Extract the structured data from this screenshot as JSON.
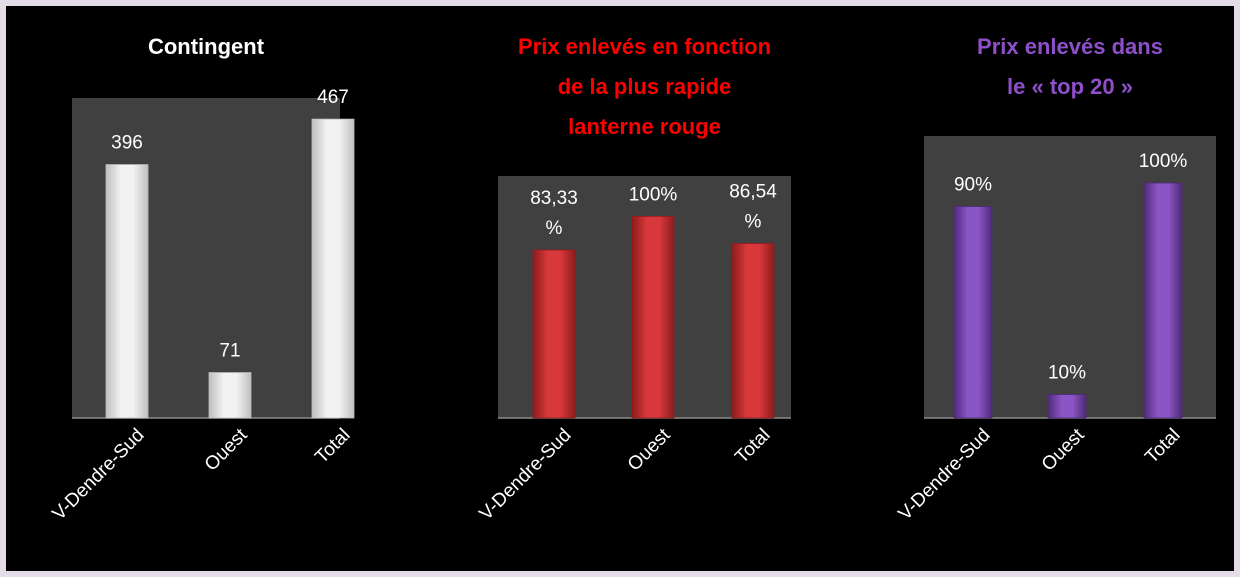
{
  "chart_data": [
    {
      "type": "bar",
      "title": [
        "Contingent"
      ],
      "title_color": "#ffffff",
      "bar_color": "#f2f2f2",
      "bar_edge": "#bfbfbf",
      "categories": [
        "V-Dendre-Sud",
        "Ouest",
        "Total"
      ],
      "values": [
        396,
        71,
        467
      ],
      "value_labels": [
        [
          "396"
        ],
        [
          "71"
        ],
        [
          "467"
        ]
      ],
      "ylim": [
        0,
        500
      ],
      "grid": false
    },
    {
      "type": "bar",
      "title": [
        "Prix enlevés en fonction",
        "de la plus rapide",
        "lanterne rouge"
      ],
      "title_color": "#ff0000",
      "bar_color": "#d9383a",
      "bar_edge": "#8c1c1e",
      "categories": [
        "V-Dendre-Sud",
        "Ouest",
        "Total"
      ],
      "values": [
        83.33,
        100,
        86.54
      ],
      "value_labels": [
        [
          "83,33",
          "%"
        ],
        [
          "100%"
        ],
        [
          "86,54",
          "%"
        ]
      ],
      "ylim": [
        0,
        120
      ],
      "grid": false
    },
    {
      "type": "bar",
      "title": [
        "Prix enlevés dans",
        "le « top 20 »"
      ],
      "title_color": "#8e4fc9",
      "bar_color": "#8a55c4",
      "bar_edge": "#4e2a78",
      "categories": [
        "V-Dendre-Sud",
        "Ouest",
        "Total"
      ],
      "values": [
        90,
        10,
        100
      ],
      "value_labels": [
        [
          "90%"
        ],
        [
          "10%"
        ],
        [
          "100%"
        ]
      ],
      "ylim": [
        0,
        120
      ],
      "grid": false
    }
  ]
}
